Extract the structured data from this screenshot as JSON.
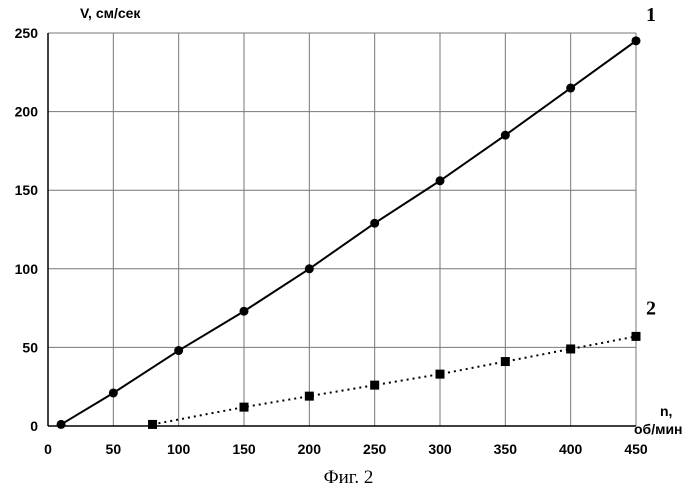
{
  "chart_data": {
    "type": "line",
    "ylabel": "V, см/сек",
    "xlabel_line1": "n,",
    "xlabel_line2": "об/мин",
    "xlim": [
      0,
      450
    ],
    "ylim": [
      0,
      250
    ],
    "x_ticks": [
      0,
      50,
      100,
      150,
      200,
      250,
      300,
      350,
      400,
      450
    ],
    "y_ticks": [
      0,
      50,
      100,
      150,
      200,
      250
    ],
    "grid": true,
    "series": [
      {
        "label": "1",
        "marker": "circle",
        "line_style": "solid",
        "x": [
          10,
          50,
          100,
          150,
          200,
          250,
          300,
          350,
          400,
          450
        ],
        "y": [
          1,
          21,
          48,
          73,
          100,
          129,
          156,
          185,
          215,
          245
        ]
      },
      {
        "label": "2",
        "marker": "square",
        "line_style": "dotted",
        "x": [
          80,
          150,
          200,
          250,
          300,
          350,
          400,
          450
        ],
        "y": [
          1,
          12,
          19,
          26,
          33,
          41,
          49,
          57
        ]
      }
    ]
  },
  "caption": "Фиг. 2"
}
